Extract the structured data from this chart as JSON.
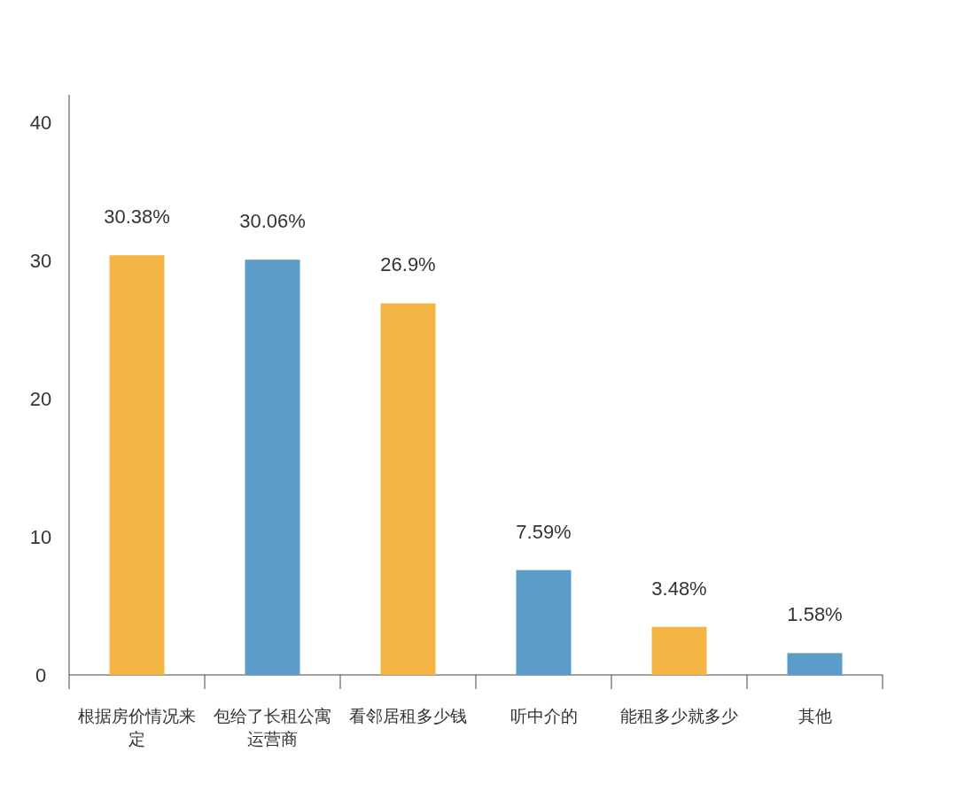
{
  "chart_data": {
    "type": "bar",
    "categories": [
      "根据房价情况来定",
      "包给了长租公寓运营商",
      "看邻居租多少钱",
      "听中介的",
      "能租多少就多少",
      "其他"
    ],
    "values": [
      30.38,
      30.06,
      26.9,
      7.59,
      3.48,
      1.58
    ],
    "value_labels": [
      "30.38%",
      "30.06%",
      "26.9%",
      "7.59%",
      "3.48%",
      "1.58%"
    ],
    "colors": [
      "#f5b544",
      "#5b9cc9",
      "#f5b544",
      "#5b9cc9",
      "#f5b544",
      "#5b9cc9"
    ],
    "ylim": [
      0,
      42
    ],
    "yticks": [
      0,
      10,
      20,
      30,
      40
    ],
    "grid": false
  }
}
